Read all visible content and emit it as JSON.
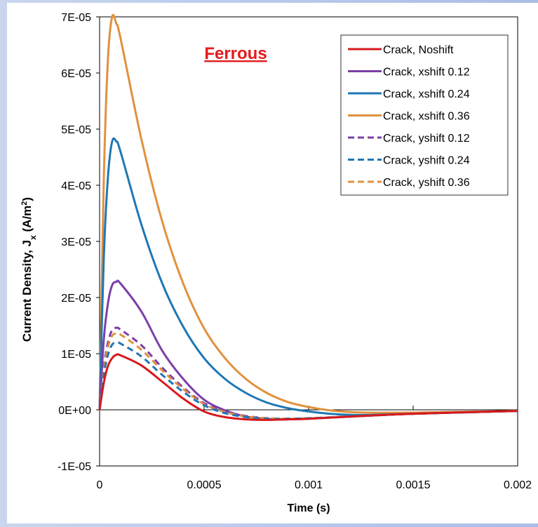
{
  "chart_data": {
    "type": "line",
    "title": "",
    "annotation": "Ferrous",
    "annotation_color": "#e31a1c",
    "xlabel": "Time (s)",
    "ylabel_main": "Current Density, J",
    "ylabel_sub": "x",
    "ylabel_unit_open": " (A/m",
    "ylabel_unit_sup": "2",
    "ylabel_unit_close": ")",
    "xlim": [
      0,
      0.002
    ],
    "ylim": [
      -1e-05,
      7e-05
    ],
    "x_ticks": [
      0,
      0.0005,
      0.001,
      0.0015,
      0.002
    ],
    "x_tick_labels": [
      "0",
      "0.0005",
      "0.001",
      "0.0015",
      "0.002"
    ],
    "y_ticks": [
      -1e-05,
      0,
      1e-05,
      2e-05,
      3e-05,
      4e-05,
      5e-05,
      6e-05,
      7e-05
    ],
    "y_tick_labels": [
      "-1E-05",
      "0E+00",
      "1E-05",
      "2E-05",
      "3E-05",
      "4E-05",
      "5E-05",
      "6E-05",
      "7E-05"
    ],
    "grid": false,
    "legend_position": "top-right",
    "series": [
      {
        "name": "Crack, Noshift",
        "color": "#d7191c",
        "dash": "solid",
        "x": [
          0,
          2e-05,
          4e-05,
          6e-05,
          8e-05,
          0.0001,
          0.0002,
          0.0003,
          0.0004,
          0.0005,
          0.0006,
          0.0007,
          0.0008,
          0.0009,
          0.001,
          0.0012,
          0.0015,
          0.002
        ],
        "y": [
          0,
          4.8e-06,
          7.8e-06,
          9.2e-06,
          9.8e-06,
          9.7e-06,
          7.9e-06,
          5e-06,
          2e-06,
          -3e-07,
          -1.3e-06,
          -1.7e-06,
          -1.8e-06,
          -1.7e-06,
          -1.6e-06,
          -1.2e-06,
          -7e-07,
          -2e-07
        ]
      },
      {
        "name": "Crack, xshift 0.12",
        "color": "#7b3fa8",
        "dash": "solid",
        "x": [
          0,
          2e-05,
          4e-05,
          6e-05,
          8e-05,
          0.0001,
          0.0002,
          0.0003,
          0.0004,
          0.0005,
          0.0006,
          0.0007,
          0.0008,
          0.0009,
          0.001,
          0.0012,
          0.0015,
          0.002
        ],
        "y": [
          0,
          1.25e-05,
          1.9e-05,
          2.22e-05,
          2.28e-05,
          2.25e-05,
          1.75e-05,
          1.05e-05,
          5.5e-06,
          1.8e-06,
          -1e-07,
          -1.2e-06,
          -1.6e-06,
          -1.7e-06,
          -1.6e-06,
          -1.2e-06,
          -7e-07,
          -2e-07
        ]
      },
      {
        "name": "Crack, xshift 0.24",
        "color": "#1f77b4",
        "dash": "solid",
        "x": [
          0,
          2e-05,
          4e-05,
          6e-05,
          8e-05,
          0.0001,
          0.0002,
          0.0003,
          0.0004,
          0.0005,
          0.0006,
          0.0007,
          0.0008,
          0.0009,
          0.001,
          0.0011,
          0.0012,
          0.0013,
          0.0015,
          0.002
        ],
        "y": [
          0,
          2.7e-05,
          4.15e-05,
          4.78e-05,
          4.78e-05,
          4.6e-05,
          3.3e-05,
          2.25e-05,
          1.48e-05,
          9.2e-06,
          5.5e-06,
          3e-06,
          1.3e-06,
          3e-07,
          -3e-07,
          -7e-07,
          -9e-07,
          -9e-07,
          -7e-07,
          -2e-07
        ]
      },
      {
        "name": "Crack, xshift 0.36",
        "color": "#e0913e",
        "dash": "solid",
        "x": [
          0,
          2e-05,
          4e-05,
          6e-05,
          8e-05,
          0.0001,
          0.0002,
          0.0003,
          0.0004,
          0.0005,
          0.0006,
          0.0007,
          0.0008,
          0.0009,
          0.001,
          0.0011,
          0.0012,
          0.0013,
          0.0015,
          0.002
        ],
        "y": [
          0,
          4.1e-05,
          6.25e-05,
          7e-05,
          6.88e-05,
          6.62e-05,
          4.82e-05,
          3.35e-05,
          2.25e-05,
          1.45e-05,
          9.2e-06,
          5.5e-06,
          3e-06,
          1.4e-06,
          5e-07,
          -1e-07,
          -4e-07,
          -5e-07,
          -5e-07,
          -2e-07
        ]
      },
      {
        "name": "Crack, yshift 0.12",
        "color": "#7b3fa8",
        "dash": "dashed",
        "x": [
          0,
          2e-05,
          4e-05,
          6e-05,
          8e-05,
          0.0001,
          0.0002,
          0.0003,
          0.0004,
          0.0005,
          0.0006,
          0.0007,
          0.0008,
          0.0009,
          0.001,
          0.0012,
          0.0015,
          0.002
        ],
        "y": [
          0,
          7.5e-06,
          1.2e-05,
          1.42e-05,
          1.46e-05,
          1.43e-05,
          1.15e-05,
          7.5e-06,
          4e-06,
          1.2e-06,
          -3e-07,
          -1.1e-06,
          -1.5e-06,
          -1.6e-06,
          -1.5e-06,
          -1.2e-06,
          -7e-07,
          -2e-07
        ]
      },
      {
        "name": "Crack, yshift 0.24",
        "color": "#1f77b4",
        "dash": "dashed",
        "x": [
          0,
          2e-05,
          4e-05,
          6e-05,
          8e-05,
          0.0001,
          0.0002,
          0.0003,
          0.0004,
          0.0005,
          0.0006,
          0.0007,
          0.0008,
          0.0009,
          0.001,
          0.0012,
          0.0015,
          0.002
        ],
        "y": [
          0,
          6.2e-06,
          9.8e-06,
          1.16e-05,
          1.2e-05,
          1.18e-05,
          9.5e-06,
          6.2e-06,
          3.2e-06,
          8e-07,
          -6e-07,
          -1.3e-06,
          -1.6e-06,
          -1.6e-06,
          -1.5e-06,
          -1.2e-06,
          -7e-07,
          -2e-07
        ]
      },
      {
        "name": "Crack, yshift 0.36",
        "color": "#e0913e",
        "dash": "dashed",
        "x": [
          0,
          2e-05,
          4e-05,
          6e-05,
          8e-05,
          0.0001,
          0.0002,
          0.0003,
          0.0004,
          0.0005,
          0.0006,
          0.0007,
          0.0008,
          0.0009,
          0.001,
          0.0012,
          0.0015,
          0.002
        ],
        "y": [
          0,
          7e-06,
          1.12e-05,
          1.32e-05,
          1.36e-05,
          1.34e-05,
          1.07e-05,
          7e-06,
          3.7e-06,
          1e-06,
          -4e-07,
          -1.2e-06,
          -1.5e-06,
          -1.6e-06,
          -1.5e-06,
          -1.2e-06,
          -7e-07,
          -2e-07
        ]
      }
    ]
  }
}
